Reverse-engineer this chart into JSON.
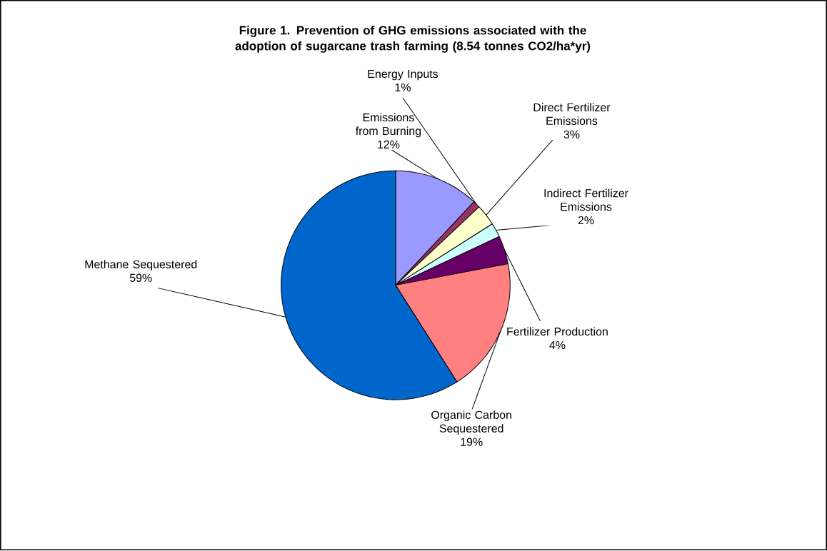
{
  "chart_data": {
    "type": "pie",
    "title": "Figure 1. Prevention of GHG emissions associated with the adoption of sugarcane trash farming (8.54 tonnes CO2/ha*yr)",
    "categories": [
      "Emissions from Burning",
      "Energy Inputs",
      "Direct Fertilizer Emissions",
      "Indirect Fertilizer Emissions",
      "Fertilizer Production",
      "Organic Carbon Sequestered",
      "Methane Sequestered"
    ],
    "values": [
      12,
      1,
      3,
      2,
      4,
      19,
      59
    ],
    "value_labels": [
      "12%",
      "1%",
      "3%",
      "2%",
      "4%",
      "19%",
      "59%"
    ],
    "colors": [
      "#9999ff",
      "#993366",
      "#ffffcc",
      "#ccffff",
      "#660066",
      "#ff8080",
      "#0066cc"
    ]
  }
}
